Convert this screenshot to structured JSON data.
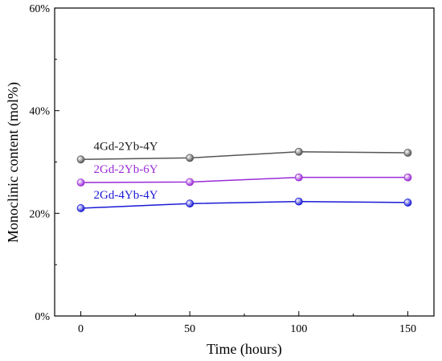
{
  "chart_data": {
    "type": "line",
    "title": "",
    "xlabel": "Time (hours)",
    "ylabel": "Monoclinic content (mol%)",
    "x": [
      0,
      50,
      100,
      150
    ],
    "xlim": [
      -12,
      162
    ],
    "ylim": [
      0,
      60
    ],
    "xticks": [
      "0",
      "50",
      "100",
      "150"
    ],
    "yticks": [
      "0%",
      "20%",
      "40%",
      "60%"
    ],
    "ytick_values": [
      0,
      20,
      40,
      60
    ],
    "grid": false,
    "series": [
      {
        "name": "4Gd-2Yb-4Y",
        "values": [
          30.5,
          30.8,
          32.0,
          31.8
        ],
        "color": "#555555",
        "label_color": "#1a1a1a"
      },
      {
        "name": "2Gd-2Yb-6Y",
        "values": [
          26.0,
          26.1,
          27.0,
          27.0
        ],
        "color": "#9a2bd6",
        "label_color": "#9a2bd6"
      },
      {
        "name": "2Gd-4Yb-4Y",
        "values": [
          21.0,
          21.9,
          22.3,
          22.1
        ],
        "color": "#1a1ad6",
        "label_color": "#1a1ad6"
      }
    ]
  }
}
